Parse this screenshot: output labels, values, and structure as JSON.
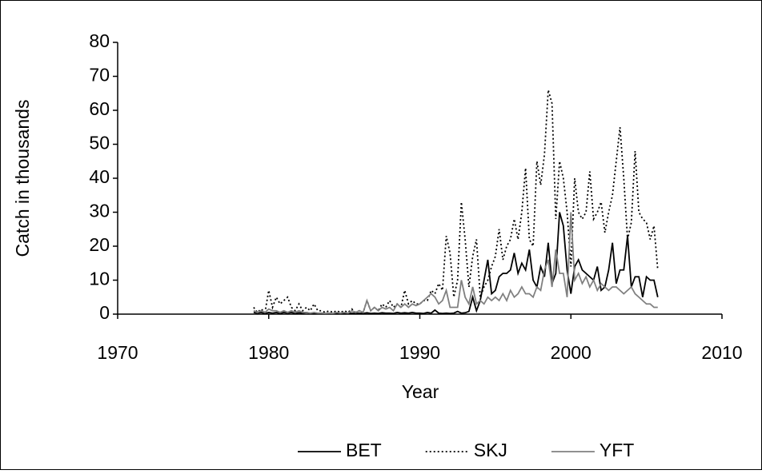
{
  "chart_data": {
    "type": "line",
    "x_label": "Year",
    "y_label": "Catch in thousands",
    "xlim": [
      1970,
      2010
    ],
    "xticks": [
      1970,
      1980,
      1990,
      2000,
      2010
    ],
    "ylim": [
      0,
      80
    ],
    "yticks": [
      0,
      10,
      20,
      30,
      40,
      50,
      60,
      70,
      80
    ],
    "legend": "bottom",
    "x": [
      1979,
      1979.25,
      1979.5,
      1979.75,
      1980,
      1980.25,
      1980.5,
      1980.75,
      1981,
      1981.25,
      1981.5,
      1981.75,
      1982,
      1982.25,
      1982.5,
      1982.75,
      1983,
      1983.25,
      1983.5,
      1983.75,
      1984,
      1984.25,
      1984.5,
      1984.75,
      1985,
      1985.25,
      1985.5,
      1985.75,
      1986,
      1986.25,
      1986.5,
      1986.75,
      1987,
      1987.25,
      1987.5,
      1987.75,
      1988,
      1988.25,
      1988.5,
      1988.75,
      1989,
      1989.25,
      1989.5,
      1989.75,
      1990,
      1990.25,
      1990.5,
      1990.75,
      1991,
      1991.25,
      1991.5,
      1991.75,
      1992,
      1992.25,
      1992.5,
      1992.75,
      1993,
      1993.25,
      1993.5,
      1993.75,
      1994,
      1994.25,
      1994.5,
      1994.75,
      1995,
      1995.25,
      1995.5,
      1995.75,
      1996,
      1996.25,
      1996.5,
      1996.75,
      1997,
      1997.25,
      1997.5,
      1997.75,
      1998,
      1998.25,
      1998.5,
      1998.75,
      1999,
      1999.25,
      1999.5,
      1999.75,
      2000,
      2000.25,
      2000.5,
      2000.75,
      2001,
      2001.25,
      2001.5,
      2001.75,
      2002,
      2002.25,
      2002.5,
      2002.75,
      2003,
      2003.25,
      2003.5,
      2003.75,
      2004,
      2004.25,
      2004.5,
      2004.75,
      2005,
      2005.25,
      2005.5,
      2005.75
    ],
    "series": [
      {
        "name": "BET",
        "color": "#000000",
        "dash": "solid",
        "values": [
          0.5,
          0.3,
          0.5,
          0.2,
          0.5,
          0.3,
          0.5,
          0.2,
          0.5,
          0.3,
          0.5,
          0.2,
          0.4,
          0.3,
          0.5,
          0.2,
          0.3,
          0.2,
          0.3,
          0.2,
          0.2,
          0.2,
          0.3,
          0.2,
          0.2,
          0.2,
          0.3,
          0.2,
          0.3,
          0.2,
          0.4,
          0.2,
          0.3,
          0.2,
          0.4,
          0.3,
          0.3,
          0.2,
          0.5,
          0.3,
          0.4,
          0.3,
          0.5,
          0.3,
          0.3,
          0.2,
          0.5,
          0.3,
          1.2,
          0.3,
          0.2,
          0.3,
          0.2,
          0.3,
          0.8,
          0.3,
          0.4,
          0.8,
          5,
          1,
          4,
          10,
          16,
          6,
          7,
          11,
          12,
          12,
          13,
          18,
          12,
          15,
          13,
          19,
          10,
          8,
          14,
          11,
          21,
          9,
          12,
          30,
          26,
          13,
          6,
          14,
          16,
          13,
          12,
          11,
          10,
          14,
          7,
          8,
          13,
          21,
          9,
          13,
          13,
          23,
          8,
          11,
          11,
          5,
          11,
          10,
          10,
          5
        ]
      },
      {
        "name": "SKJ",
        "color": "#000000",
        "dash": "dotted",
        "values": [
          2,
          0.5,
          1.5,
          0.5,
          7,
          2,
          5,
          3,
          4,
          5,
          2,
          1,
          3,
          1,
          2,
          1,
          3,
          1,
          1,
          0.5,
          1,
          0.5,
          1,
          0.5,
          1,
          0.5,
          1.5,
          0.5,
          1,
          0.5,
          4,
          1,
          2,
          1,
          3,
          2,
          4,
          2,
          3,
          2,
          7,
          3,
          4,
          3,
          3,
          4,
          4,
          7,
          6,
          9,
          7,
          23,
          18,
          5,
          10,
          33,
          22,
          8,
          17,
          22,
          5,
          8,
          10,
          14,
          17,
          25,
          16,
          20,
          22,
          28,
          22,
          30,
          43,
          22,
          20,
          45,
          38,
          47,
          66,
          62,
          28,
          45,
          40,
          30,
          14,
          40,
          30,
          28,
          30,
          42,
          28,
          30,
          33,
          24,
          30,
          35,
          45,
          55,
          40,
          22,
          27,
          48,
          30,
          28,
          27,
          22,
          26,
          13
        ]
      },
      {
        "name": "YFT",
        "color": "#808080",
        "dash": "solid",
        "values": [
          1,
          0.5,
          1,
          0.5,
          1.5,
          1,
          1,
          0.5,
          1,
          0.5,
          1,
          0.5,
          1,
          0.5,
          0.5,
          0.3,
          0.5,
          0.3,
          0.3,
          0.2,
          0.3,
          0.2,
          0.5,
          0.3,
          0.5,
          0.3,
          1,
          0.5,
          1,
          0.5,
          4,
          1,
          2,
          1,
          2,
          1.5,
          2,
          1,
          3,
          2,
          3,
          2,
          3,
          2.5,
          3,
          4,
          5,
          6,
          5,
          3,
          4,
          7,
          2,
          2,
          2,
          10,
          5,
          3,
          8,
          3,
          4,
          3,
          5,
          4,
          5,
          4,
          6,
          4,
          7,
          5,
          6,
          8,
          6,
          6,
          5,
          8,
          7,
          13,
          16,
          8,
          19,
          12,
          12,
          5,
          30,
          10,
          12,
          9,
          11,
          8,
          10,
          7,
          9,
          8,
          7,
          8,
          8,
          7,
          6,
          7,
          8,
          6,
          5,
          4,
          3,
          3,
          2,
          2
        ]
      }
    ]
  }
}
